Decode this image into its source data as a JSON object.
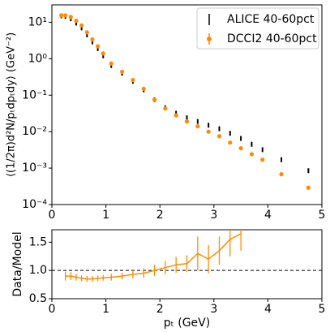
{
  "chart_data": [
    {
      "type": "scatter",
      "log_y": true,
      "ylabel": "⟨(1/2π)d²N/pₜdpₜdy⟩ (GeV⁻²)",
      "xlim": [
        0,
        5
      ],
      "ylim": [
        0.0001,
        30
      ],
      "xticks": [
        0,
        1,
        2,
        3,
        4,
        5
      ],
      "yticks": [
        {
          "value": 0.0001,
          "label": "10⁻⁴"
        },
        {
          "value": 0.001,
          "label": "10⁻³"
        },
        {
          "value": 0.01,
          "label": "10⁻²"
        },
        {
          "value": 0.1,
          "label": "10⁻¹"
        },
        {
          "value": 1,
          "label": "10⁰"
        },
        {
          "value": 10,
          "label": "10¹"
        }
      ],
      "legend": "upper right",
      "x": [
        0.175,
        0.25,
        0.35,
        0.45,
        0.55,
        0.65,
        0.75,
        0.85,
        0.95,
        1.1,
        1.3,
        1.5,
        1.7,
        1.9,
        2.1,
        2.3,
        2.5,
        2.7,
        2.9,
        3.1,
        3.3,
        3.5,
        3.7,
        3.9,
        4.25,
        4.75
      ],
      "series": [
        {
          "name": "ALICE 40-60pct",
          "color": "#000000",
          "values": [
            15,
            14.5,
            12.5,
            9.5,
            7,
            4.5,
            2.9,
            1.9,
            1.2,
            0.65,
            0.4,
            0.24,
            0.14,
            0.075,
            0.045,
            0.032,
            0.024,
            0.019,
            0.015,
            0.012,
            0.009,
            0.0065,
            0.0045,
            0.0032,
            0.0017,
            0.00085
          ]
        },
        {
          "name": "DCCI2 40-60pct",
          "color": "#ff8c00",
          "values": [
            15.5,
            15.5,
            14,
            11,
            8.2,
            5.3,
            3.4,
            2.2,
            1.4,
            0.74,
            0.44,
            0.26,
            0.15,
            0.075,
            0.043,
            0.028,
            0.019,
            0.014,
            0.01,
            0.0075,
            0.005,
            0.0035,
            0.0024,
            0.0017,
            0.00068,
            0.00029
          ]
        }
      ]
    },
    {
      "type": "errorline",
      "xlabel": "pₜ (GeV)",
      "ylabel": "Data/Model",
      "xlim": [
        0,
        5
      ],
      "ylim": [
        0.5,
        1.72
      ],
      "xticks": [
        0,
        1,
        2,
        3,
        4,
        5
      ],
      "yticks": [
        0.5,
        {
          "value": 1.0,
          "label": "1.0"
        },
        1.5
      ],
      "reference_line": 1,
      "color": "#ff8c00",
      "x": [
        0.25,
        0.35,
        0.45,
        0.55,
        0.65,
        0.75,
        0.85,
        0.95,
        1.1,
        1.3,
        1.5,
        1.7,
        1.9,
        2.1,
        2.3,
        2.5,
        2.7,
        2.9,
        3.1,
        3.3,
        3.5
      ],
      "values": [
        0.9,
        0.9,
        0.88,
        0.86,
        0.85,
        0.85,
        0.86,
        0.87,
        0.88,
        0.9,
        0.93,
        0.95,
        1.0,
        1.05,
        1.1,
        1.12,
        1.3,
        1.2,
        1.35,
        1.55,
        1.65
      ],
      "errors": [
        0.08,
        0.07,
        0.06,
        0.05,
        0.05,
        0.05,
        0.05,
        0.05,
        0.06,
        0.06,
        0.07,
        0.08,
        0.1,
        0.12,
        0.14,
        0.15,
        0.3,
        0.25,
        0.25,
        0.3,
        0.3
      ]
    }
  ]
}
